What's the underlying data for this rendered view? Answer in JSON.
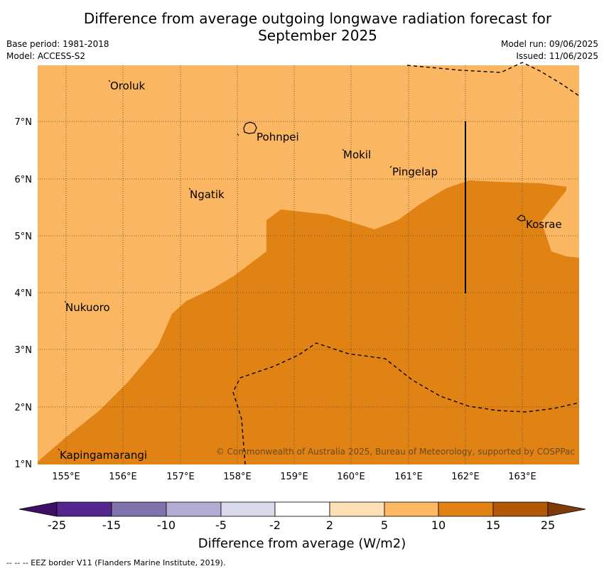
{
  "title_line1": "Difference from average outgoing longwave radiation forecast for",
  "title_line2": "September 2025",
  "base_period": "Base period: 1981-2018",
  "model": "Model: ACCESS-S2",
  "model_run": "Model run: 09/06/2025",
  "issued": "Issued: 11/06/2025",
  "map": {
    "lon_range": [
      154.5,
      164.0
    ],
    "lat_range": [
      1.0,
      8.0
    ],
    "lon_ticks": [
      "155°E",
      "156°E",
      "157°E",
      "158°E",
      "159°E",
      "160°E",
      "161°E",
      "162°E",
      "163°E"
    ],
    "lat_ticks": [
      "1°N",
      "2°N",
      "3°N",
      "4°N",
      "5°N",
      "6°N",
      "7°N"
    ],
    "places": [
      {
        "name": "Oroluk"
      },
      {
        "name": "Pohnpei"
      },
      {
        "name": "Mokil"
      },
      {
        "name": "Pingelap"
      },
      {
        "name": "Ngatik"
      },
      {
        "name": "Kosrae"
      },
      {
        "name": "Nukuoro"
      },
      {
        "name": "Kapingamarangi"
      }
    ],
    "copyright": "© Commonwealth of Australia 2025, Bureau of Meteorology, supported by COSPPac"
  },
  "colorbar": {
    "labels": [
      "-25",
      "-15",
      "-10",
      "-5",
      "-2",
      "2",
      "5",
      "10",
      "15",
      "25"
    ],
    "colors": [
      "#3f0f66",
      "#54278f",
      "#8073ac",
      "#b2abd2",
      "#d8daeb",
      "#ffffff",
      "#fee0b6",
      "#fdb863",
      "#e08214",
      "#b35806",
      "#7f3b08"
    ],
    "title": "Difference from average (W/m2)"
  },
  "footer": "--  --  -- EEZ border V11 (Flanders Marine Institute, 2019)."
}
